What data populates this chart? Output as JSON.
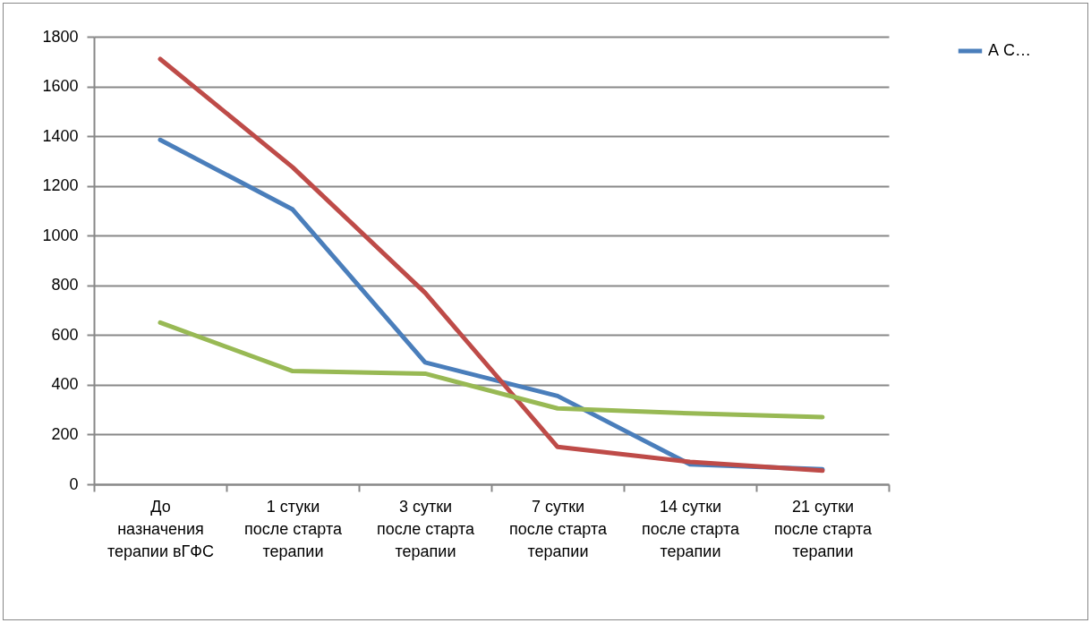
{
  "chart_data": {
    "type": "line",
    "categories": [
      "До назначения терапии вГФС",
      "1 стуки после старта терапии",
      "3 сутки после старта терапии",
      "7 сутки после старта терапии",
      "14 сутки после старта терапии",
      "21 сутки после старта терапии"
    ],
    "series": [
      {
        "name": "А С…",
        "color": "#4a7ebb",
        "values": [
          1385,
          1105,
          490,
          355,
          80,
          60
        ]
      },
      {
        "color": "#be4b48",
        "values": [
          1710,
          1275,
          770,
          150,
          90,
          55
        ]
      },
      {
        "color": "#98b954",
        "values": [
          650,
          455,
          445,
          305,
          285,
          270
        ]
      }
    ],
    "ylim": [
      0,
      1800
    ],
    "yticks": [
      0,
      200,
      400,
      600,
      800,
      1000,
      1200,
      1400,
      1600,
      1800
    ],
    "grid": "y",
    "legend": "right",
    "marker": "none",
    "line_style": "solid"
  }
}
